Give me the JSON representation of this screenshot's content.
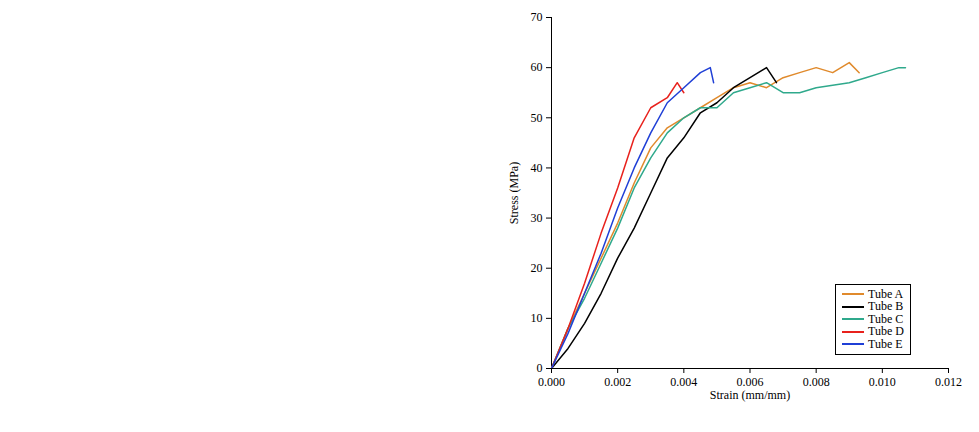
{
  "chart_data": {
    "type": "line",
    "xlabel": "Strain (mm/mm)",
    "ylabel": "Stress (MPa)",
    "xlim": [
      0,
      0.012
    ],
    "xticks": [
      {
        "value": 0,
        "label": "0.000"
      },
      {
        "value": 0.002,
        "label": "0.002"
      },
      {
        "value": 0.004,
        "label": "0.004"
      },
      {
        "value": 0.006,
        "label": "0.006"
      },
      {
        "value": 0.008,
        "label": "0.008"
      },
      {
        "value": 0.01,
        "label": "0.010"
      },
      {
        "value": 0.012,
        "label": "0.012"
      }
    ],
    "ylim": [
      0,
      70
    ],
    "yticks": [
      0,
      10,
      20,
      30,
      40,
      50,
      60,
      70
    ],
    "grid": false,
    "legend": "lower right",
    "series": [
      {
        "name": "Tube A",
        "color": "#e08a2c",
        "x": [
          0,
          0.0005,
          0.001,
          0.0015,
          0.002,
          0.0025,
          0.003,
          0.0035,
          0.004,
          0.0045,
          0.005,
          0.0055,
          0.006,
          0.0065,
          0.007,
          0.0075,
          0.008,
          0.0085,
          0.009,
          0.0093
        ],
        "values": [
          0,
          8,
          15,
          22,
          29,
          37,
          44,
          48,
          50,
          52,
          54,
          56,
          57,
          56,
          58,
          59,
          60,
          59,
          61,
          59
        ]
      },
      {
        "name": "Tube B",
        "color": "#000000",
        "x": [
          0,
          0.0005,
          0.001,
          0.0015,
          0.002,
          0.0025,
          0.003,
          0.0035,
          0.004,
          0.0045,
          0.005,
          0.0055,
          0.006,
          0.0065,
          0.0068
        ],
        "values": [
          0,
          4,
          9,
          15,
          22,
          28,
          35,
          42,
          46,
          51,
          53,
          56,
          58,
          60,
          57
        ]
      },
      {
        "name": "Tube C",
        "color": "#2fa98c",
        "x": [
          0,
          0.0005,
          0.001,
          0.0015,
          0.002,
          0.0025,
          0.003,
          0.0035,
          0.004,
          0.0045,
          0.005,
          0.0055,
          0.006,
          0.0065,
          0.007,
          0.0075,
          0.008,
          0.009,
          0.0095,
          0.01,
          0.0105,
          0.0107
        ],
        "values": [
          0,
          8,
          14,
          21,
          28,
          36,
          42,
          47,
          50,
          52,
          52,
          55,
          56,
          57,
          55,
          55,
          56,
          57,
          58,
          59,
          60,
          60
        ]
      },
      {
        "name": "Tube D",
        "color": "#e8211c",
        "x": [
          0,
          0.0005,
          0.001,
          0.0015,
          0.002,
          0.0025,
          0.003,
          0.0035,
          0.0038,
          0.004
        ],
        "values": [
          0,
          8,
          17,
          27,
          36,
          46,
          52,
          54,
          57,
          55
        ]
      },
      {
        "name": "Tube E",
        "color": "#1f3fd6",
        "x": [
          0,
          0.0005,
          0.001,
          0.0015,
          0.002,
          0.0025,
          0.003,
          0.0035,
          0.004,
          0.0045,
          0.0048,
          0.0049
        ],
        "values": [
          0,
          7,
          15,
          23,
          32,
          40,
          47,
          53,
          56,
          59,
          60,
          57
        ]
      }
    ]
  }
}
